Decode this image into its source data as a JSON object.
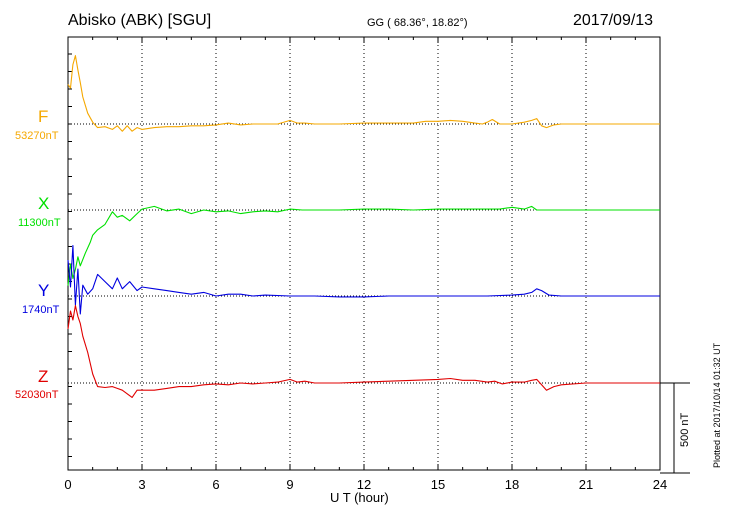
{
  "header": {
    "title": "Abisko (ABK)  [SGU]",
    "coords": "GG ( 68.36°,  18.82°)",
    "date": "2017/09/13"
  },
  "footer": {
    "plotted": "Plotted at 2017/10/14 01:32 UT"
  },
  "scale_bar": {
    "label": "500 nT",
    "value_nT": 500
  },
  "chart_data": {
    "type": "line",
    "title": "Abisko (ABK)  [SGU]",
    "xlabel": "U T (hour)",
    "ylabel": "",
    "xlim": [
      0,
      24
    ],
    "xticks": [
      "0",
      "3",
      "6",
      "9",
      "12",
      "15",
      "18",
      "21",
      "24"
    ],
    "grid": true,
    "y_units": "nT offset from baseline",
    "series": [
      {
        "name": "F",
        "baseline_label": "53270nT",
        "color": "#f5a800",
        "x": [
          0,
          0.1,
          0.2,
          0.3,
          0.4,
          0.5,
          0.6,
          0.8,
          1.0,
          1.2,
          1.5,
          1.8,
          2.0,
          2.2,
          2.4,
          2.6,
          2.8,
          3.0,
          3.5,
          4.0,
          4.5,
          5.0,
          5.5,
          6.0,
          6.5,
          7.0,
          7.5,
          8.0,
          8.5,
          9.0,
          9.3,
          9.6,
          10.0,
          11.0,
          12.0,
          13.0,
          14.0,
          14.5,
          15.0,
          15.5,
          16.0,
          16.5,
          16.8,
          17.0,
          17.2,
          17.5,
          18.0,
          18.5,
          18.8,
          19.0,
          19.2,
          19.4,
          19.7,
          20.0,
          21.0,
          22.0,
          23.0,
          24.0
        ],
        "y": [
          220,
          200,
          330,
          380,
          300,
          230,
          150,
          60,
          10,
          -20,
          -15,
          -30,
          -10,
          -40,
          -10,
          -40,
          -20,
          -30,
          -20,
          -15,
          -15,
          -10,
          -10,
          -5,
          5,
          -5,
          0,
          0,
          0,
          20,
          5,
          5,
          0,
          0,
          5,
          5,
          5,
          15,
          15,
          20,
          15,
          5,
          0,
          10,
          25,
          0,
          0,
          10,
          20,
          30,
          -10,
          -20,
          -5,
          0,
          0,
          0,
          0,
          0
        ]
      },
      {
        "name": "X",
        "baseline_label": "11300nT",
        "color": "#00e000",
        "x": [
          0,
          0.1,
          0.2,
          0.3,
          0.4,
          0.5,
          0.7,
          0.9,
          1.0,
          1.2,
          1.5,
          1.8,
          2.0,
          2.2,
          2.5,
          2.8,
          3.0,
          3.5,
          4.0,
          4.5,
          5.0,
          5.5,
          6.0,
          6.5,
          7.0,
          7.5,
          8.0,
          8.5,
          9.0,
          9.5,
          10.0,
          11.0,
          12.0,
          13.0,
          14.0,
          15.0,
          16.0,
          17.0,
          17.5,
          18.0,
          18.5,
          18.8,
          19.0,
          19.3,
          19.6,
          20.0,
          21.0,
          22.0,
          23.0,
          24.0
        ],
        "y": [
          -420,
          -300,
          -380,
          -330,
          -260,
          -310,
          -240,
          -180,
          -140,
          -110,
          -80,
          -10,
          -40,
          -30,
          -60,
          -20,
          5,
          20,
          -5,
          5,
          -20,
          0,
          -10,
          -5,
          -20,
          -10,
          -5,
          -10,
          5,
          0,
          0,
          0,
          5,
          5,
          0,
          5,
          5,
          5,
          5,
          15,
          5,
          20,
          0,
          0,
          0,
          0,
          0,
          0,
          0,
          0
        ]
      },
      {
        "name": "Y",
        "baseline_label": "1740nT",
        "color": "#0000e0",
        "x": [
          0,
          0.1,
          0.2,
          0.3,
          0.4,
          0.5,
          0.6,
          0.8,
          1.0,
          1.2,
          1.5,
          1.8,
          2.0,
          2.2,
          2.5,
          2.8,
          3.0,
          3.5,
          4.0,
          4.5,
          5.0,
          5.5,
          6.0,
          6.5,
          7.0,
          7.5,
          8.0,
          9.0,
          10.0,
          11.0,
          12.0,
          13.0,
          14.0,
          15.0,
          16.0,
          17.0,
          18.0,
          18.5,
          18.8,
          19.0,
          19.2,
          19.5,
          20.0,
          21.0,
          22.0,
          23.0,
          24.0
        ],
        "y": [
          200,
          50,
          280,
          -50,
          150,
          -100,
          60,
          10,
          40,
          120,
          80,
          40,
          100,
          40,
          80,
          30,
          50,
          40,
          30,
          20,
          10,
          20,
          0,
          10,
          10,
          0,
          5,
          0,
          0,
          -5,
          -5,
          0,
          0,
          0,
          0,
          0,
          5,
          10,
          20,
          40,
          30,
          5,
          0,
          0,
          0,
          0,
          0
        ]
      },
      {
        "name": "Z",
        "baseline_label": "52030nT",
        "color": "#e00000",
        "x": [
          0,
          0.1,
          0.2,
          0.3,
          0.4,
          0.5,
          0.6,
          0.8,
          1.0,
          1.2,
          1.5,
          1.8,
          2.0,
          2.2,
          2.4,
          2.6,
          2.8,
          3.0,
          3.5,
          4.0,
          4.5,
          5.0,
          5.5,
          6.0,
          6.5,
          7.0,
          7.5,
          8.0,
          8.5,
          9.0,
          9.3,
          9.6,
          10.0,
          11.0,
          12.0,
          13.0,
          14.0,
          15.0,
          15.5,
          16.0,
          16.5,
          17.0,
          17.3,
          17.6,
          18.0,
          18.5,
          18.8,
          19.0,
          19.2,
          19.4,
          19.7,
          20.0,
          21.0,
          22.0,
          23.0,
          24.0
        ],
        "y": [
          300,
          400,
          350,
          430,
          370,
          330,
          260,
          170,
          50,
          -20,
          -25,
          -20,
          -30,
          -40,
          -60,
          -80,
          -40,
          -40,
          -40,
          -30,
          -20,
          -20,
          -10,
          -5,
          -10,
          0,
          -5,
          0,
          5,
          20,
          5,
          10,
          0,
          0,
          5,
          10,
          15,
          20,
          25,
          15,
          15,
          5,
          10,
          -5,
          5,
          5,
          15,
          20,
          -10,
          -40,
          -20,
          -10,
          0,
          0,
          0,
          0
        ]
      }
    ]
  }
}
